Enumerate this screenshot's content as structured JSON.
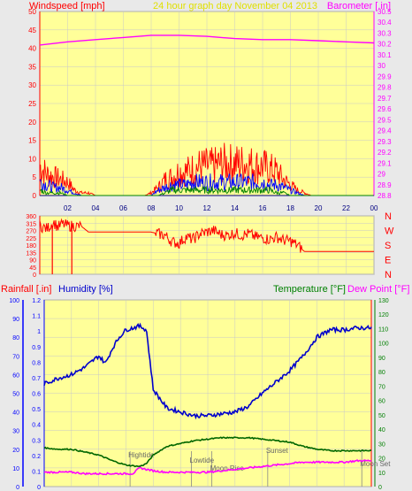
{
  "header": {
    "left": "Windspeed [mph]",
    "center": "24 hour graph day   November 04 2013",
    "right": "Barometer [.in]"
  },
  "panel3_header": {
    "rainfall": "Rainfall [.in]",
    "humidity": "Humidity [%]",
    "temperature": "Temperature [°F]",
    "dewpoint": "Dew Point [°F]"
  },
  "colors": {
    "background": "#ffff99",
    "frame": "#e9e9e9",
    "wind_avg": "#0000ff",
    "wind_gust": "#ff0000",
    "wind_low": "#008000",
    "barometer": "#ff00ff",
    "direction": "#ff0000",
    "humidity": "#0000cc",
    "temperature": "#006600",
    "dewpoint": "#ff00ff",
    "rain_axis": "#0000ff",
    "right_axis": "#008000",
    "grid": "#c8c8c8"
  },
  "chart_data": [
    {
      "type": "line",
      "title": "24 hour graph day   November 04 2013",
      "x_ticks": [
        "02",
        "04",
        "06",
        "08",
        "10",
        "12",
        "14",
        "16",
        "18",
        "20",
        "22",
        "00"
      ],
      "left_axis": {
        "label": "Windspeed [mph]",
        "ylim": [
          0,
          50
        ],
        "ticks": [
          0,
          5,
          10,
          15,
          20,
          25,
          30,
          35,
          40,
          45,
          50
        ]
      },
      "right_axis": {
        "label": "Barometer [.in]",
        "ylim": [
          28.8,
          30.5
        ],
        "ticks": [
          "28.8",
          "28.9",
          "29",
          "29.1",
          "29.2",
          "29.3",
          "29.4",
          "29.5",
          "29.6",
          "29.7",
          "29.8",
          "29.9",
          "30",
          "30.1",
          "30.2",
          "30.3",
          "30.4",
          "30.5"
        ]
      },
      "series": [
        {
          "name": "Barometer [.in]",
          "x": [
            0,
            2,
            4,
            6,
            8,
            9,
            10,
            12,
            14,
            16,
            18,
            20,
            22,
            24
          ],
          "values": [
            30.19,
            30.22,
            30.24,
            30.26,
            30.28,
            30.28,
            30.28,
            30.27,
            30.25,
            30.24,
            30.24,
            30.23,
            30.22,
            30.21
          ]
        }
      ],
      "wind_bands": {
        "x": [
          0,
          0.5,
          1,
          1.5,
          2,
          2.5,
          3,
          3.5,
          4,
          4.5,
          5,
          5.5,
          6,
          6.5,
          7,
          7.5,
          8,
          8.5,
          9,
          9.5,
          10,
          10.5,
          11,
          11.5,
          12,
          12.5,
          13,
          13.5,
          14,
          14.5,
          15,
          15.5,
          16,
          16.5,
          17,
          17.5,
          18,
          18.5,
          19,
          19.5,
          20,
          20.5,
          21,
          21.5,
          22,
          22.5,
          23,
          23.5,
          24
        ],
        "gust": [
          11,
          8,
          7,
          6,
          5,
          2,
          1,
          1,
          0,
          0,
          0,
          0,
          0,
          0,
          0,
          0,
          1,
          3,
          6,
          7,
          9,
          9,
          10,
          11,
          11,
          11,
          12,
          12,
          12,
          12,
          12,
          11,
          11,
          10,
          9,
          6,
          4,
          2,
          1,
          0,
          0,
          0,
          0,
          0,
          0,
          0,
          0,
          0,
          0
        ],
        "avg": [
          5,
          4,
          3,
          3,
          2,
          1,
          0,
          0,
          0,
          0,
          0,
          0,
          0,
          0,
          0,
          0,
          0,
          2,
          3,
          4,
          4,
          4,
          5,
          5,
          5,
          5,
          5,
          5,
          5,
          5,
          5,
          5,
          5,
          4,
          4,
          3,
          2,
          1,
          0,
          0,
          0,
          0,
          0,
          0,
          0,
          0,
          0,
          0,
          0
        ],
        "low": [
          2,
          1,
          1,
          1,
          0,
          0,
          0,
          0,
          0,
          0,
          0,
          0,
          0,
          0,
          0,
          0,
          0,
          0,
          1,
          2,
          2,
          2,
          2,
          2,
          2,
          2,
          2,
          2,
          2,
          2,
          2,
          2,
          2,
          2,
          1,
          1,
          0,
          0,
          0,
          0,
          0,
          0,
          0,
          0,
          0,
          0,
          0,
          0,
          0
        ]
      }
    },
    {
      "type": "scatter",
      "x_ticks": [
        "02",
        "04",
        "06",
        "08",
        "10",
        "12",
        "14",
        "16",
        "18",
        "20",
        "22",
        "00"
      ],
      "left_axis": {
        "ylim": [
          0,
          360
        ],
        "ticks": [
          0,
          45,
          90,
          135,
          180,
          225,
          270,
          315,
          360
        ]
      },
      "right_axis_labels": [
        "N",
        "W",
        "S",
        "E",
        "N"
      ],
      "series": [
        {
          "name": "Wind direction",
          "x": [
            0,
            0.5,
            1,
            1.3,
            1.6,
            2,
            3,
            3.5,
            4,
            5,
            6,
            7,
            8,
            8.5,
            9,
            9.5,
            10,
            10.5,
            11,
            11.5,
            12,
            12.5,
            13,
            13.5,
            14,
            14.5,
            15,
            15.5,
            16,
            16.5,
            17,
            17.5,
            18,
            18.5,
            19,
            20,
            21,
            22,
            23,
            24
          ],
          "values": [
            300,
            280,
            320,
            290,
            310,
            300,
            295,
            260,
            260,
            260,
            260,
            260,
            260,
            250,
            240,
            200,
            190,
            230,
            215,
            250,
            260,
            270,
            245,
            240,
            255,
            240,
            250,
            230,
            225,
            215,
            230,
            210,
            205,
            180,
            140,
            140,
            140,
            140,
            140,
            140
          ]
        }
      ]
    },
    {
      "type": "line",
      "x_ticks": [
        "02",
        "04",
        "06",
        "08",
        "10",
        "12",
        "14",
        "16",
        "18",
        "20",
        "22",
        "00"
      ],
      "left_axis": {
        "label": "Rainfall [.in]",
        "ylim": [
          0,
          1.2
        ],
        "ticks": [
          "0",
          "0.1",
          "0.2",
          "0.3",
          "0.4",
          "0.5",
          "0.6",
          "0.7",
          "0.8",
          "0.9",
          "1",
          "1.1",
          "1.2"
        ]
      },
      "humidity_axis": {
        "label": "Humidity [%]",
        "ylim": [
          0,
          100
        ],
        "ticks": [
          0,
          10,
          20,
          30,
          40,
          50,
          60,
          70,
          80,
          90,
          100
        ]
      },
      "right_axis": {
        "label": "Temperature [°F] / Dew Point [°F]",
        "ylim": [
          0,
          130
        ],
        "ticks": [
          0,
          10,
          20,
          30,
          40,
          50,
          60,
          70,
          80,
          90,
          100,
          110,
          120,
          130
        ]
      },
      "series": [
        {
          "name": "Humidity [%]",
          "x": [
            0,
            1,
            2,
            3,
            4,
            4.5,
            5,
            5.5,
            6,
            7,
            7.5,
            8,
            9,
            10,
            11,
            12,
            13,
            14,
            15,
            16,
            17,
            18,
            19,
            20,
            21,
            22,
            23,
            24
          ],
          "values": [
            55,
            58,
            60,
            64,
            70,
            66,
            74,
            80,
            84,
            86,
            84,
            52,
            42,
            40,
            38,
            38,
            39,
            40,
            43,
            50,
            56,
            62,
            70,
            80,
            84,
            84,
            85,
            85
          ]
        },
        {
          "name": "Temperature [°F]",
          "x": [
            0,
            1,
            2,
            3,
            4,
            5,
            6,
            7,
            7.5,
            8,
            9,
            10,
            11,
            12,
            13,
            14,
            15,
            16,
            17,
            18,
            19,
            20,
            21,
            22,
            23,
            24
          ],
          "values": [
            27,
            26,
            26,
            24,
            22,
            18,
            15,
            14,
            16,
            22,
            28,
            30,
            32,
            33,
            34,
            34,
            34,
            33,
            32,
            31,
            28,
            26,
            25,
            25,
            25,
            25
          ]
        },
        {
          "name": "Dew Point [°F]",
          "x": [
            0,
            1,
            2,
            3,
            4,
            5,
            6,
            6.5,
            7,
            8,
            9,
            10,
            11,
            12,
            13,
            14,
            15,
            16,
            17,
            18,
            19,
            20,
            21,
            22,
            23,
            24
          ],
          "values": [
            10,
            10,
            10,
            9,
            9,
            9,
            9,
            9,
            13,
            11,
            10,
            10,
            10,
            10,
            11,
            12,
            13,
            14,
            15,
            16,
            17,
            17,
            17,
            17,
            18,
            18
          ]
        }
      ],
      "markers": [
        {
          "label": "Hightide",
          "x": 6.3
        },
        {
          "label": "Lowtide",
          "x": 10.8
        },
        {
          "label": "Moon Rise",
          "x": 12.3
        },
        {
          "label": "Sunset",
          "x": 16.4
        },
        {
          "label": "Moon Set",
          "x": 23.3
        }
      ]
    }
  ]
}
